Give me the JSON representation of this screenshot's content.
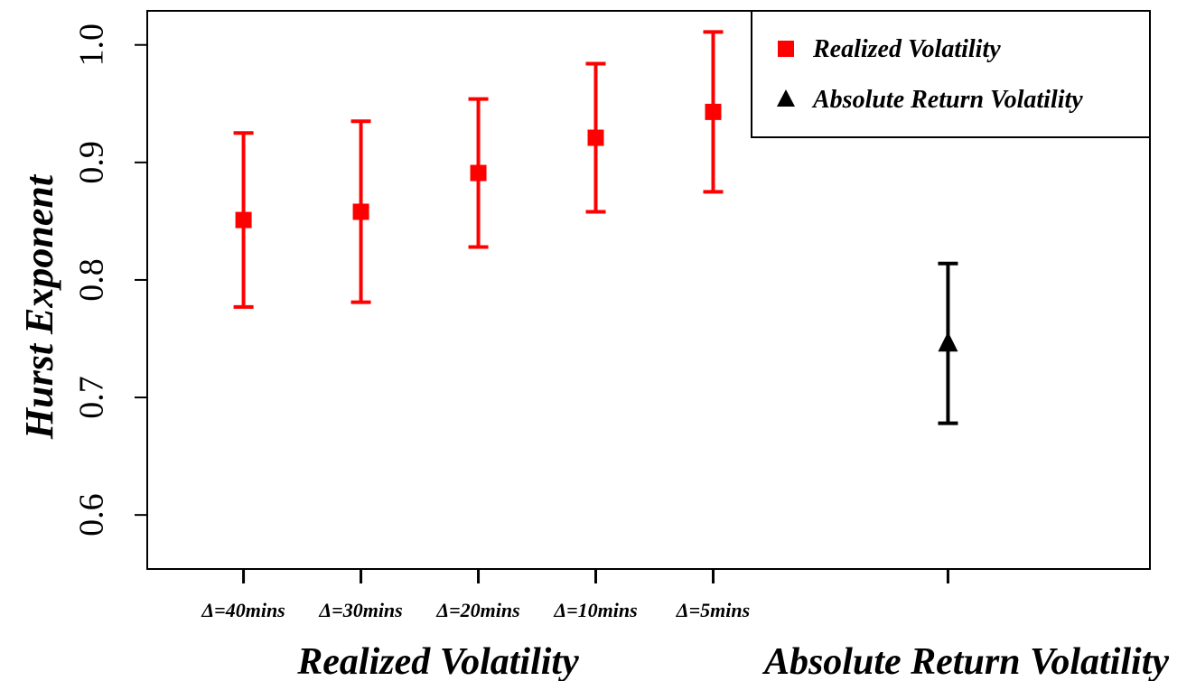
{
  "chart_data": {
    "type": "errorbar",
    "ylabel": "Hurst Exponent",
    "xlim": [
      0.18,
      8.72
    ],
    "xticks": [
      {
        "value": 1,
        "label": "Δ=40mins"
      },
      {
        "value": 2,
        "label": "Δ=30mins"
      },
      {
        "value": 3,
        "label": "Δ=20mins"
      },
      {
        "value": 4,
        "label": "Δ=10mins"
      },
      {
        "value": 5,
        "label": "Δ=5mins"
      },
      {
        "value": 7,
        "label": null
      }
    ],
    "ylim": [
      0.554,
      1.029
    ],
    "yticks": [
      {
        "value": 0.6,
        "label": "0.6"
      },
      {
        "value": 0.7,
        "label": "0.7"
      },
      {
        "value": 0.8,
        "label": "0.8"
      },
      {
        "value": 0.9,
        "label": "0.9"
      },
      {
        "value": 1.0,
        "label": "1.0"
      }
    ],
    "annotations": [
      "Realized Volatility",
      "Absolute Return Volatility"
    ],
    "legend": "top-right",
    "series": [
      {
        "name": "Realized Volatility",
        "color": "#ff0000",
        "marker": "square",
        "x": [
          1,
          2,
          3,
          4,
          5
        ],
        "values": [
          0.851,
          0.858,
          0.891,
          0.921,
          0.943
        ],
        "errors": [
          0.074,
          0.077,
          0.063,
          0.063,
          0.068
        ]
      },
      {
        "name": "Absolute Return Volatility",
        "color": "#000000",
        "marker": "triangle",
        "x": [
          7
        ],
        "values": [
          0.746
        ],
        "errors": [
          0.068
        ]
      }
    ]
  }
}
